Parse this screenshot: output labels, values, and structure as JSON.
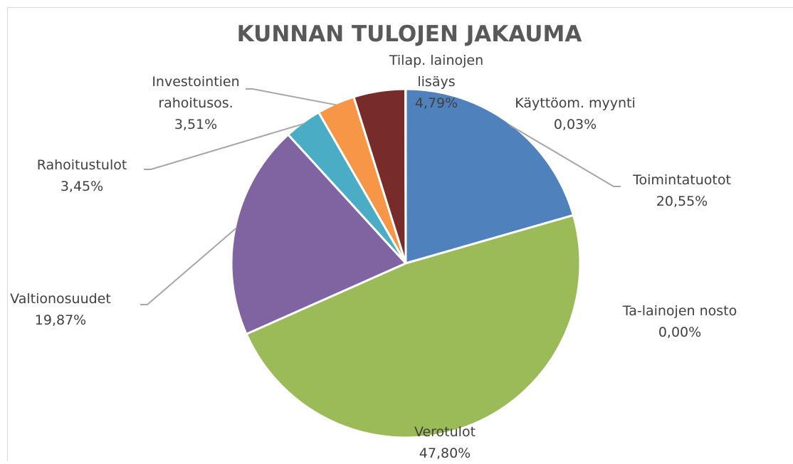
{
  "chart_data": {
    "type": "pie",
    "title": "KUNNAN TULOJEN JAKAUMA",
    "categories": [
      "Toimintatuotot",
      "Verotulot",
      "Valtionosuudet",
      "Rahoitustulot",
      "Investointien rahoitusos.",
      "Tilap. lainojen lisäys",
      "Käyttöom. myynti",
      "Ta-lainojen nosto"
    ],
    "values": [
      20.55,
      47.8,
      19.87,
      3.45,
      3.51,
      4.79,
      0.03,
      0.0
    ],
    "value_labels": [
      "20,55%",
      "47,80%",
      "19,87%",
      "3,45%",
      "3,51%",
      "4,79%",
      "0,03%",
      "0,00%"
    ],
    "colors": [
      "#4f81bd",
      "#9bbb59",
      "#8064a2",
      "#4bacc6",
      "#f79646",
      "#772c2a",
      "#2c4d75",
      "#5f7530"
    ]
  }
}
